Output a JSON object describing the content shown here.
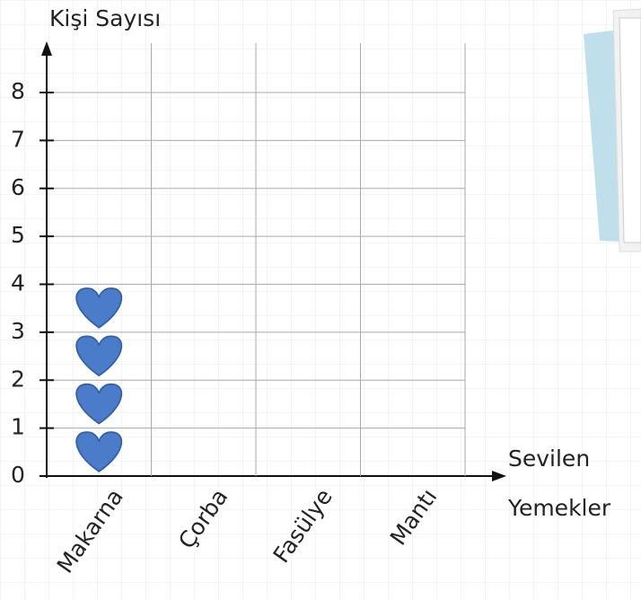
{
  "chart_data": {
    "type": "pictograph",
    "y_label": "Kişi Sayısı",
    "x_label_lines": [
      "Sevilen",
      "Yemekler"
    ],
    "categories": [
      "Makarna",
      "Çorba",
      "Fasülye",
      "Mantı"
    ],
    "values": [
      4,
      0,
      0,
      0
    ],
    "color": "#4a7cc9",
    "ylim": [
      0,
      8
    ],
    "yticks": [
      0,
      1,
      2,
      3,
      4,
      5,
      6,
      7,
      8
    ],
    "grid": true
  }
}
